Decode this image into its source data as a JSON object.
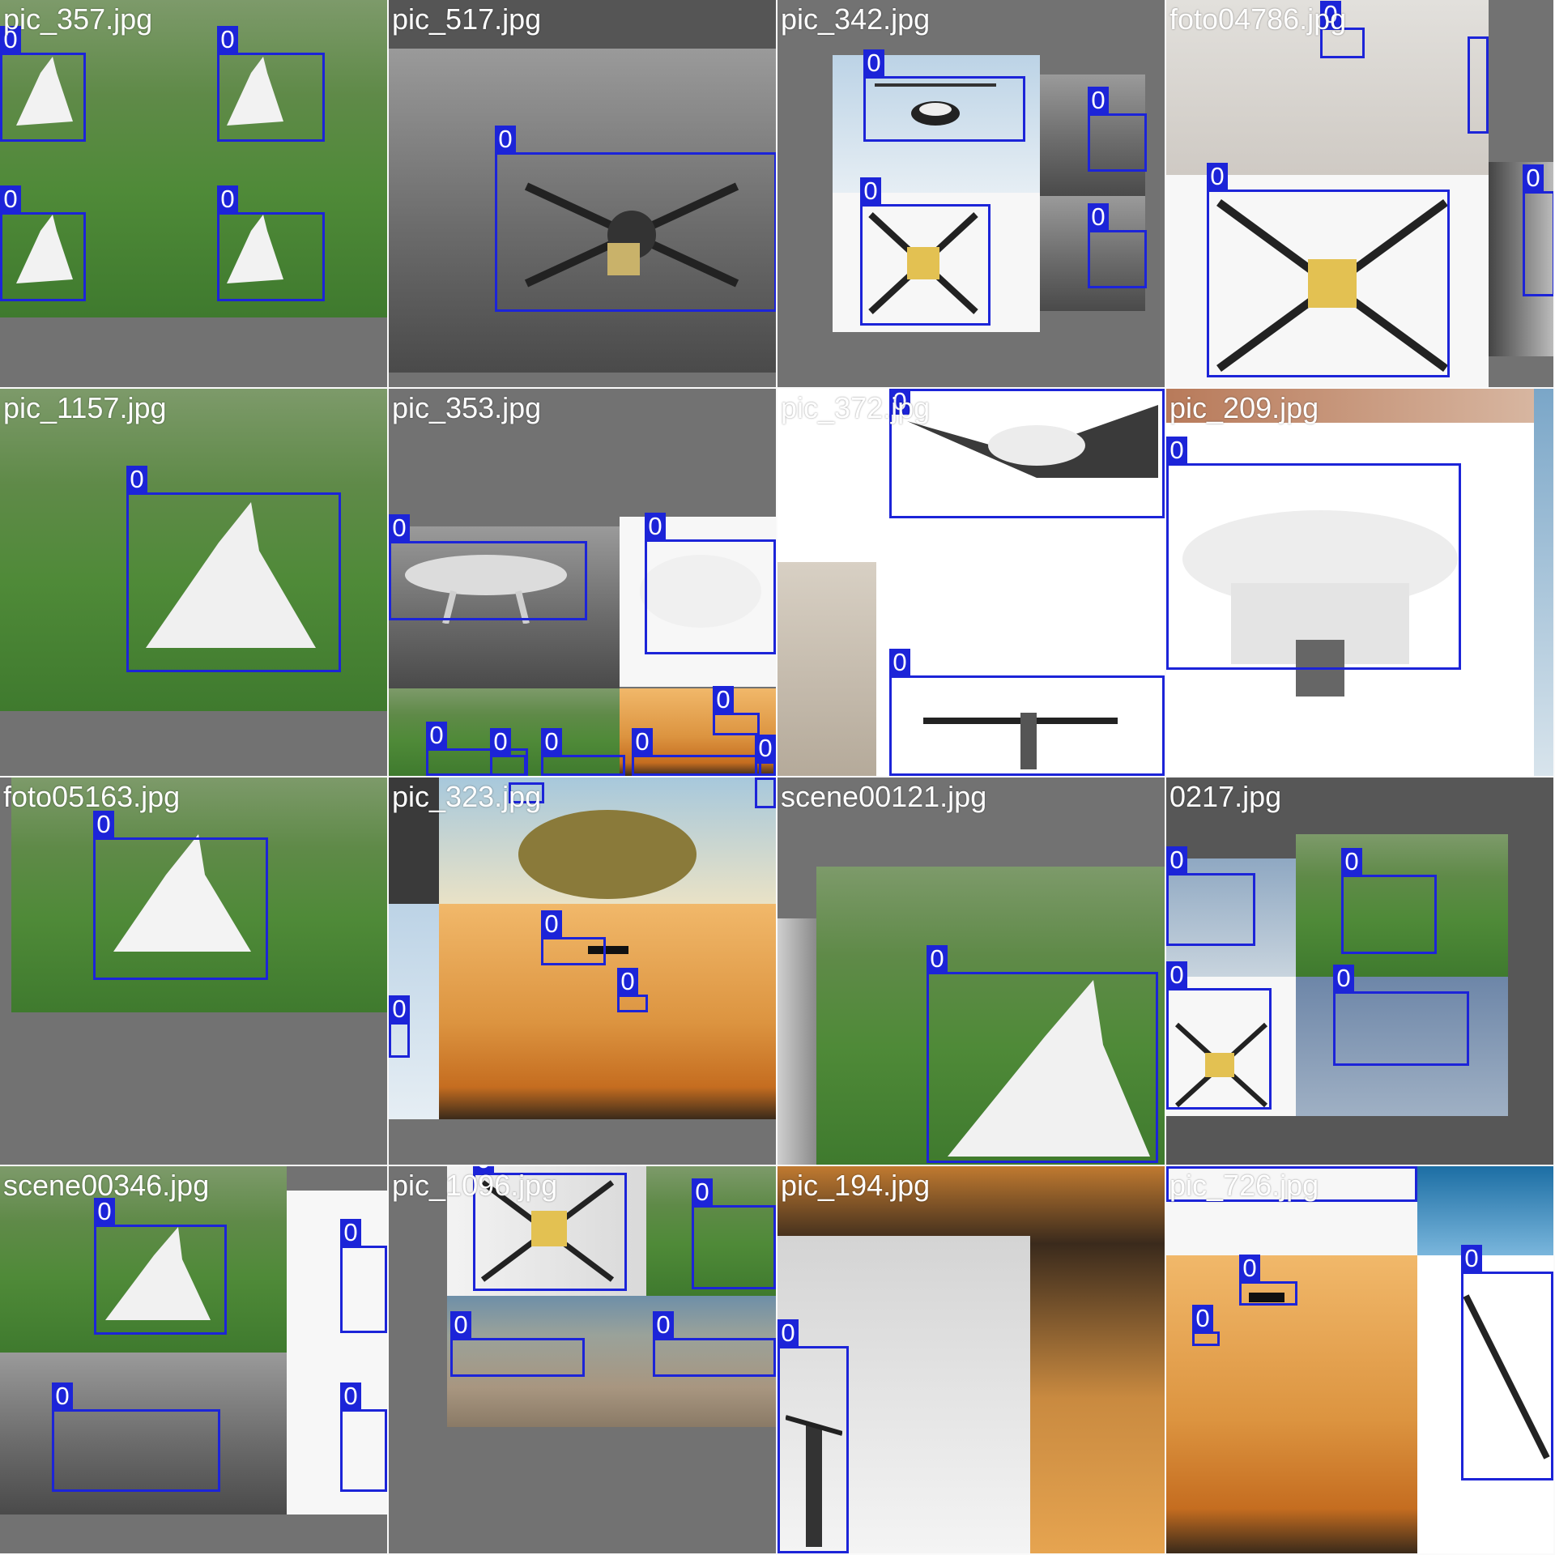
{
  "tiles": [
    {
      "name": "pic_357.jpg"
    },
    {
      "name": "pic_517.jpg"
    },
    {
      "name": "pic_342.jpg"
    },
    {
      "name": "foto04786.jpg"
    },
    {
      "name": "pic_1157.jpg"
    },
    {
      "name": "pic_353.jpg"
    },
    {
      "name": "pic_372.jpg"
    },
    {
      "name": "pic_209.jpg"
    },
    {
      "name": "foto05163.jpg"
    },
    {
      "name": "pic_323.jpg"
    },
    {
      "name": "scene00121.jpg"
    },
    {
      "name": "0217.jpg"
    },
    {
      "name": "scene00346.jpg"
    },
    {
      "name": "pic_1096.jpg"
    },
    {
      "name": "pic_194.jpg"
    },
    {
      "name": "pic_726.jpg"
    }
  ],
  "class_label": "0",
  "colors": {
    "box": "#1c24d8",
    "label_text": "#ffffff",
    "padding": "#727272"
  }
}
